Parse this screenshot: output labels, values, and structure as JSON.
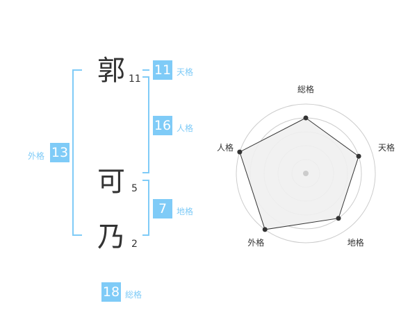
{
  "name": {
    "chars": [
      {
        "char": "郭",
        "strokes": "11"
      },
      {
        "char": "可",
        "strokes": "5"
      },
      {
        "char": "乃",
        "strokes": "2"
      }
    ]
  },
  "fortunes": {
    "tenkaku": {
      "label": "天格",
      "value": "11"
    },
    "jinkaku": {
      "label": "人格",
      "value": "16"
    },
    "chikaku": {
      "label": "地格",
      "value": "7"
    },
    "gaikaku": {
      "label": "外格",
      "value": "13"
    },
    "soukaku": {
      "label": "総格",
      "value": "18"
    }
  },
  "colors": {
    "accent": "#7fcbf7",
    "radar_fill": "#f0f0f0",
    "radar_line": "#333333"
  },
  "chart_data": {
    "type": "radar",
    "axes": [
      "総格",
      "天格",
      "地格",
      "外格",
      "人格"
    ],
    "values": [
      4,
      4,
      4,
      5,
      5
    ],
    "range": [
      0,
      5
    ],
    "grid_rings": 5
  }
}
